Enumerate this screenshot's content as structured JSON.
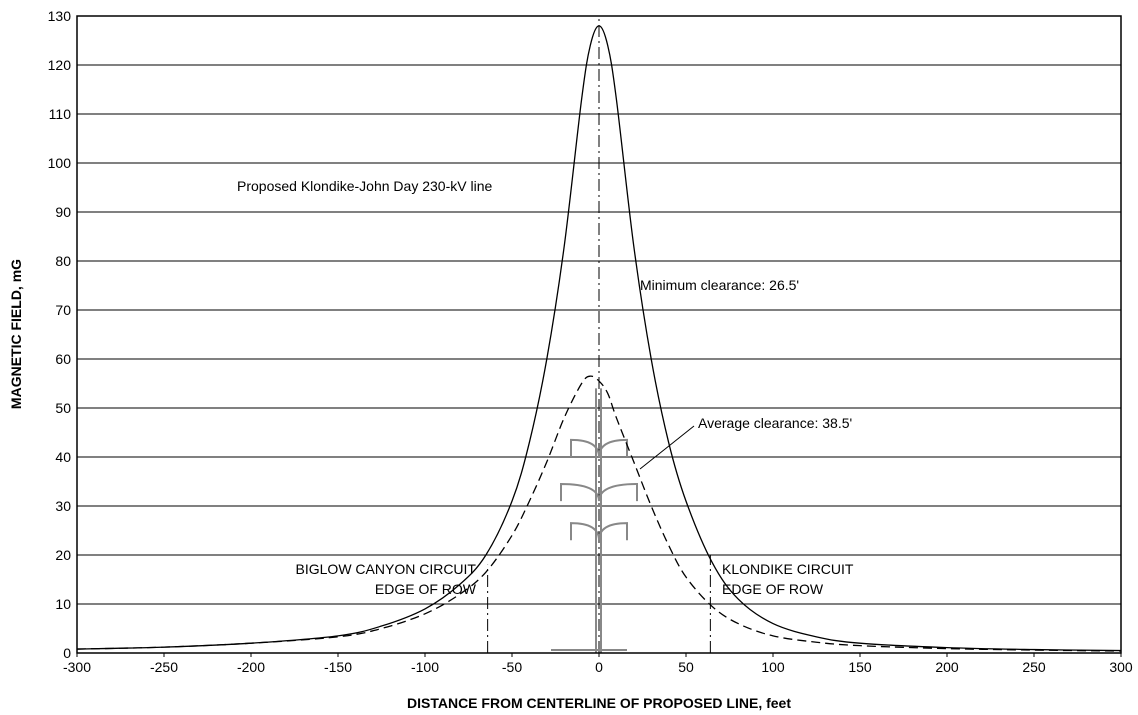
{
  "chart_data": {
    "type": "line",
    "xlabel": "DISTANCE FROM CENTERLINE OF PROPOSED LINE, feet",
    "ylabel": "MAGNETIC FIELD, mG",
    "xlim": [
      -300,
      300
    ],
    "ylim": [
      0,
      130
    ],
    "xticks": [
      -300,
      -250,
      -200,
      -150,
      -100,
      -50,
      0,
      50,
      100,
      150,
      200,
      250,
      300
    ],
    "yticks": [
      0,
      10,
      20,
      30,
      40,
      50,
      60,
      70,
      80,
      90,
      100,
      110,
      120,
      130
    ],
    "grid": "horizontal",
    "series": [
      {
        "name": "Minimum clearance: 26.5'",
        "style": "solid",
        "x": [
          -300,
          -250,
          -200,
          -150,
          -125,
          -100,
          -80,
          -65,
          -50,
          -40,
          -30,
          -20,
          -10,
          -5,
          0,
          5,
          10,
          20,
          30,
          40,
          50,
          65,
          80,
          100,
          125,
          150,
          200,
          250,
          300
        ],
        "y": [
          0.8,
          1.2,
          2.0,
          3.5,
          5.5,
          9.0,
          14.0,
          20.0,
          31.0,
          43.0,
          60.0,
          83.0,
          113.0,
          124.0,
          128.0,
          124.0,
          113.0,
          83.0,
          60.0,
          43.0,
          31.0,
          18.5,
          11.0,
          6.0,
          3.3,
          2.0,
          1.1,
          0.7,
          0.5
        ]
      },
      {
        "name": "Average clearance: 38.5'",
        "style": "dashed",
        "x": [
          -300,
          -250,
          -200,
          -150,
          -125,
          -100,
          -80,
          -65,
          -50,
          -40,
          -30,
          -20,
          -10,
          -5,
          0,
          5,
          10,
          20,
          30,
          40,
          50,
          65,
          80,
          100,
          125,
          150,
          200,
          250,
          300
        ],
        "y": [
          0.8,
          1.2,
          2.0,
          3.3,
          5.0,
          8.0,
          12.0,
          16.5,
          24.0,
          31.0,
          39.0,
          48.0,
          55.0,
          56.5,
          55.5,
          53.0,
          48.0,
          39.0,
          30.0,
          22.0,
          15.5,
          9.5,
          6.0,
          3.5,
          2.2,
          1.5,
          0.9,
          0.6,
          0.4
        ]
      }
    ],
    "reference_lines": [
      {
        "x": 0,
        "style": "dash-dot",
        "y_top": 130
      },
      {
        "x": -64,
        "style": "dash-dot",
        "y_top": 18
      },
      {
        "x": 64,
        "style": "dash-dot",
        "y_top": 20
      }
    ],
    "annotations": {
      "line_name": "Proposed Klondike-John Day 230-kV line",
      "min_clearance": "Minimum clearance: 26.5'",
      "avg_clearance": "Average clearance: 38.5'",
      "left_row_line1": "BIGLOW CANYON CIRCUIT",
      "left_row_line2": "EDGE OF ROW",
      "right_row_line1": "KLONDIKE CIRCUIT",
      "right_row_line2": "EDGE OF ROW"
    },
    "colors": {
      "line": "#000000",
      "tower": "#888888",
      "background": "#ffffff"
    },
    "tower_icon": "transmission-tower-icon"
  }
}
